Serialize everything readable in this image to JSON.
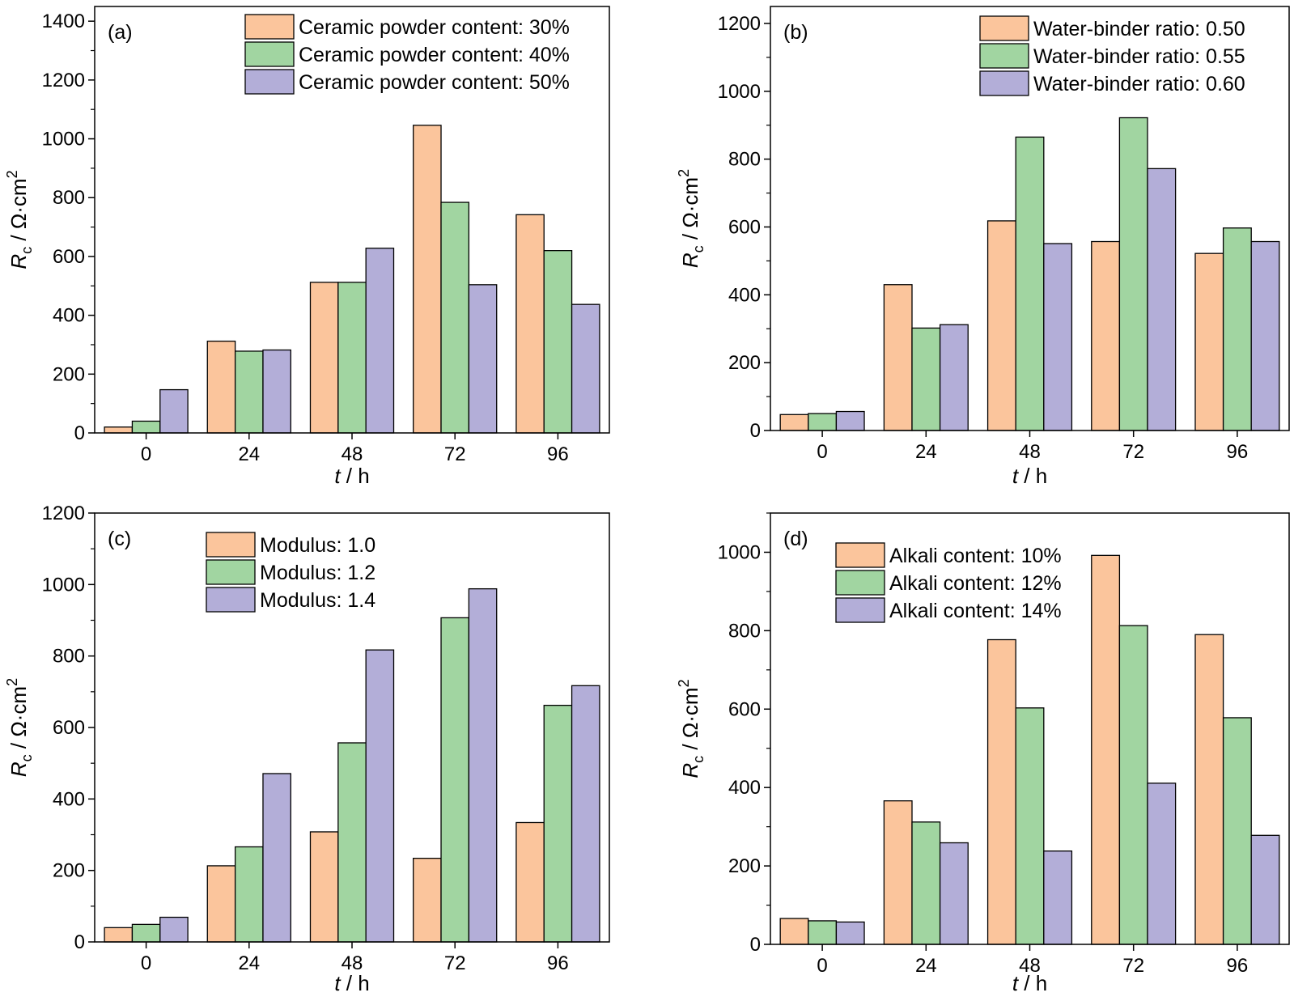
{
  "colors": {
    "series": [
      "#fbc59c",
      "#a1d5a1",
      "#b3aed8"
    ],
    "stroke": "#000000"
  },
  "chart_data": [
    {
      "type": "bar",
      "panel_label": "(a)",
      "categories": [
        "0",
        "24",
        "48",
        "72",
        "96"
      ],
      "series": [
        {
          "name": "Ceramic powder content: 30%",
          "values": [
            20,
            312,
            512,
            1046,
            742
          ]
        },
        {
          "name": "Ceramic powder content: 40%",
          "values": [
            40,
            278,
            512,
            784,
            620
          ]
        },
        {
          "name": "Ceramic powder content: 50%",
          "values": [
            147,
            282,
            628,
            504,
            437
          ]
        }
      ],
      "xlabel": {
        "var": "t",
        "unit": " / h"
      },
      "ylabel": {
        "var": "R",
        "sub": "c",
        "unit": " / Ω·cm",
        "sup": "2"
      },
      "ylim": [
        0,
        1450
      ],
      "yticks": [
        0,
        200,
        400,
        600,
        800,
        1000,
        1200,
        1400
      ],
      "legend": "top-right",
      "grid": false
    },
    {
      "type": "bar",
      "panel_label": "(b)",
      "categories": [
        "0",
        "24",
        "48",
        "72",
        "96"
      ],
      "series": [
        {
          "name": "Water-binder ratio: 0.50",
          "values": [
            47,
            430,
            618,
            557,
            522
          ]
        },
        {
          "name": "Water-binder ratio: 0.55",
          "values": [
            50,
            302,
            865,
            922,
            597
          ]
        },
        {
          "name": "Water-binder ratio: 0.60",
          "values": [
            56,
            312,
            551,
            772,
            557
          ]
        }
      ],
      "xlabel": {
        "var": "t",
        "unit": " / h"
      },
      "ylabel": {
        "var": "R",
        "sub": "c",
        "unit": " / Ω·cm",
        "sup": "2"
      },
      "ylim": [
        0,
        1250
      ],
      "yticks": [
        0,
        200,
        400,
        600,
        800,
        1000,
        1200
      ],
      "legend": "top-right",
      "grid": false
    },
    {
      "type": "bar",
      "panel_label": "(c)",
      "categories": [
        "0",
        "24",
        "48",
        "72",
        "96"
      ],
      "series": [
        {
          "name": "Modulus: 1.0",
          "values": [
            40,
            213,
            308,
            234,
            334
          ]
        },
        {
          "name": "Modulus: 1.2",
          "values": [
            49,
            266,
            557,
            907,
            662
          ]
        },
        {
          "name": "Modulus: 1.4",
          "values": [
            69,
            471,
            817,
            988,
            717
          ]
        }
      ],
      "xlabel": {
        "var": "t",
        "unit": " / h"
      },
      "ylabel": {
        "var": "R",
        "sub": "c",
        "unit": " / Ω·cm",
        "sup": "2"
      },
      "ylim": [
        0,
        1200
      ],
      "yticks": [
        0,
        200,
        400,
        600,
        800,
        1000,
        1200
      ],
      "legend": "top-left",
      "grid": false
    },
    {
      "type": "bar",
      "panel_label": "(d)",
      "categories": [
        "0",
        "24",
        "48",
        "72",
        "96"
      ],
      "series": [
        {
          "name": "Alkali content: 10%",
          "values": [
            66,
            366,
            777,
            992,
            790
          ]
        },
        {
          "name": "Alkali content: 12%",
          "values": [
            60,
            312,
            603,
            813,
            578
          ]
        },
        {
          "name": "Alkali content: 14%",
          "values": [
            57,
            259,
            238,
            411,
            278
          ]
        }
      ],
      "xlabel": {
        "var": "t",
        "unit": " / h"
      },
      "ylabel": {
        "var": "R",
        "sub": "c",
        "unit": " / Ω·cm",
        "sup": "2"
      },
      "ylim": [
        0,
        1100
      ],
      "yticks": [
        0,
        200,
        400,
        600,
        800,
        1000
      ],
      "legend": "top-left",
      "grid": false
    }
  ]
}
